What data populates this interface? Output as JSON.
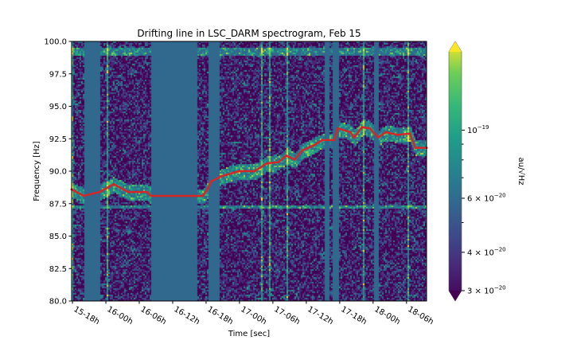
{
  "chart_data": {
    "type": "heatmap",
    "title": "Drifting line in LSC_DARM spectrogram, Feb 15",
    "xlabel": "Time [sec]",
    "ylabel": "Frequency [Hz]",
    "x_units": "minutes since 15-18h",
    "xlim": [
      -0.15,
      63.6
    ],
    "ylim": [
      80,
      100
    ],
    "x_ticks": [
      {
        "value": 0,
        "label": "15-18h"
      },
      {
        "value": 6,
        "label": "16-00h"
      },
      {
        "value": 12,
        "label": "16-06h"
      },
      {
        "value": 18,
        "label": "16-12h"
      },
      {
        "value": 24,
        "label": "16-18h"
      },
      {
        "value": 30,
        "label": "17-00h"
      },
      {
        "value": 36,
        "label": "17-06h"
      },
      {
        "value": 42,
        "label": "17-12h"
      },
      {
        "value": 48,
        "label": "17-18h"
      },
      {
        "value": 54,
        "label": "18-00h"
      },
      {
        "value": 60,
        "label": "18-06h"
      }
    ],
    "y_ticks": [
      "80.0",
      "82.5",
      "85.0",
      "87.5",
      "90.0",
      "92.5",
      "95.0",
      "97.5",
      "100.0"
    ],
    "data_gaps_minutes": [
      [
        2.0,
        4.9
      ],
      [
        14.1,
        22.3
      ],
      [
        24.4,
        26.3
      ],
      [
        45.1,
        46.0
      ],
      [
        46.7,
        47.6
      ],
      [
        54.1,
        55.0
      ]
    ],
    "tracked_line": {
      "name": "drifting line track",
      "color": "#d62728",
      "x": [
        -0.14,
        2,
        4.9,
        7.4,
        10,
        13.4,
        14.1,
        23.4,
        24.1,
        24.9,
        26.7,
        29.9,
        32.7,
        34.9,
        37.0,
        38.4,
        39.9,
        41.3,
        43.4,
        44.9,
        47,
        47.7,
        49.9,
        50.6,
        52,
        53.4,
        54.9,
        56.3,
        58.4,
        60.6,
        61.6,
        63.6
      ],
      "y": [
        88.6,
        88.1,
        88.4,
        89.0,
        88.4,
        88.4,
        88.1,
        88.1,
        88.5,
        89.2,
        89.6,
        90.0,
        90.0,
        90.6,
        90.7,
        91.2,
        90.9,
        91.6,
        92.0,
        92.4,
        92.4,
        93.3,
        93.0,
        92.6,
        93.4,
        93.3,
        92.6,
        93.0,
        92.8,
        92.9,
        91.8,
        91.8
      ]
    },
    "colorbar": {
      "label": "au/√Hz",
      "scale": "log",
      "range": [
        3e-20,
        1.8e-19
      ],
      "colormap": "viridis",
      "ticks": [
        {
          "value": 1e-19,
          "label_base": "10",
          "label_exp": "−19"
        },
        {
          "value": 6e-20,
          "label_base": "6 × 10",
          "label_exp": "−20"
        },
        {
          "value": 4e-20,
          "label_base": "4 × 10",
          "label_exp": "−20"
        },
        {
          "value": 3e-20,
          "label_base": "3 × 10",
          "label_exp": "−20"
        }
      ],
      "minor_ticks": [
        9e-20,
        8e-20,
        7e-20,
        5e-20
      ]
    }
  }
}
